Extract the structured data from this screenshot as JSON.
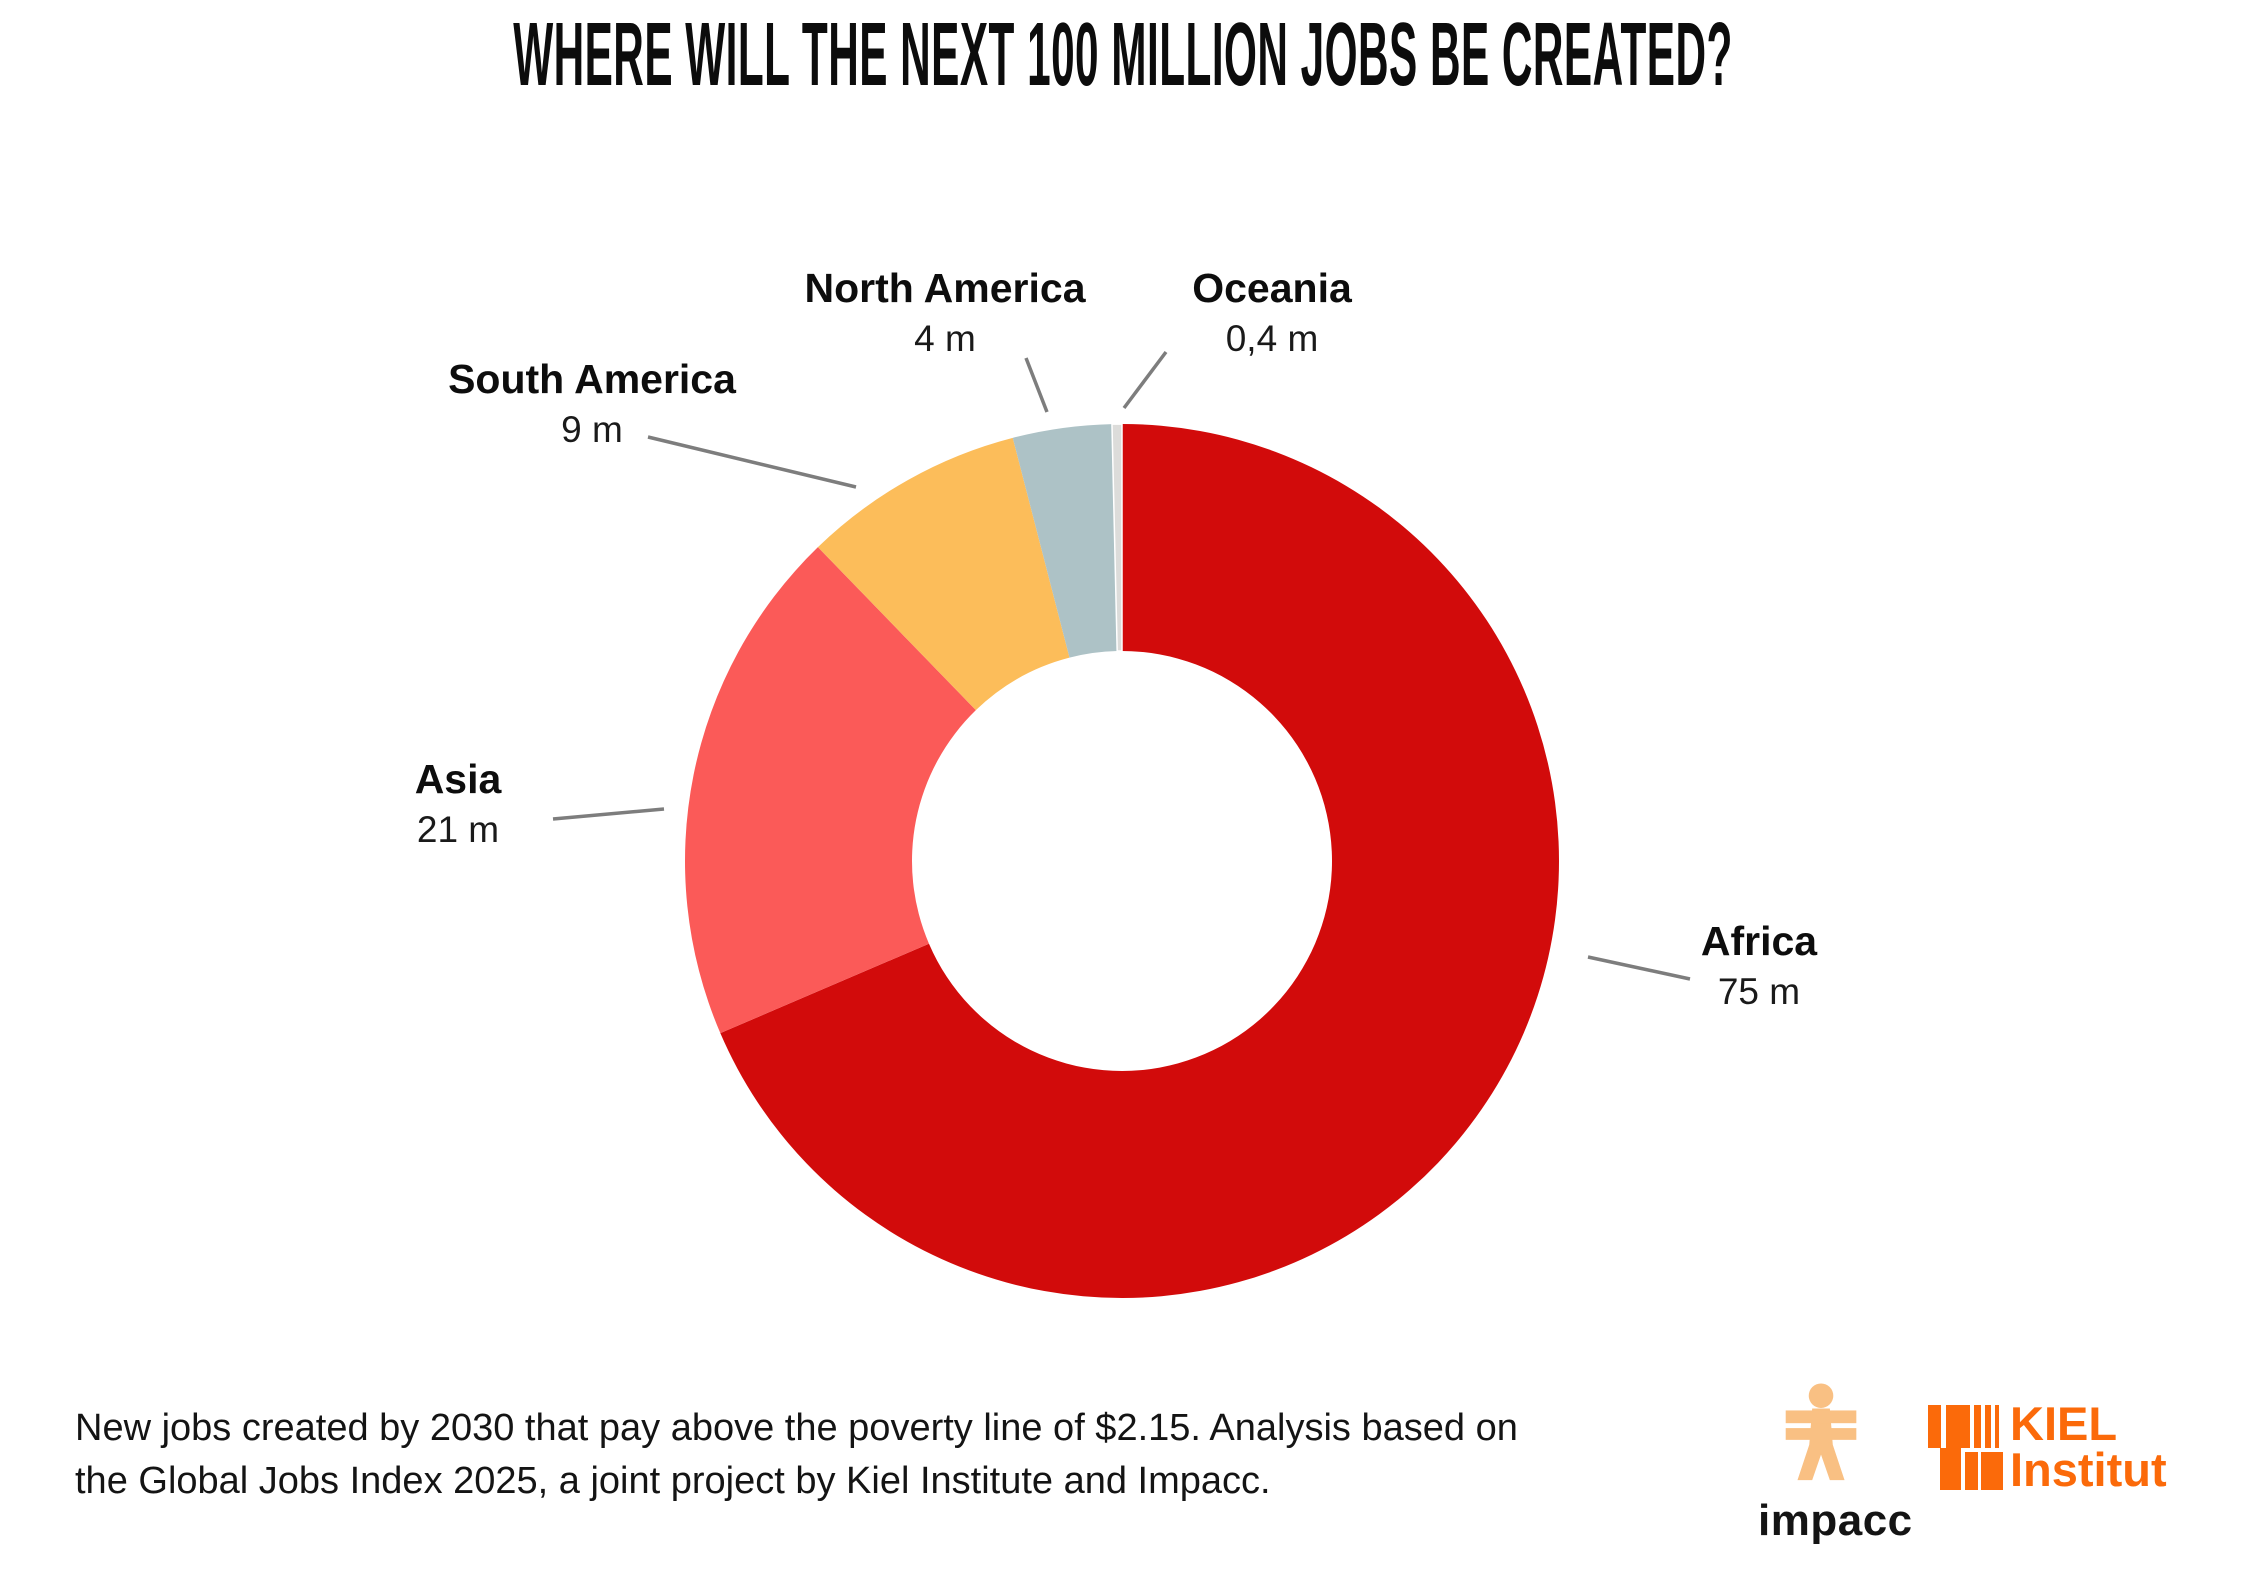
{
  "title": "WHERE WILL THE NEXT 100 MILLION JOBS BE CREATED?",
  "chart_data": {
    "type": "pie",
    "subtype": "donut",
    "title": "Where will the next 100 million jobs be created?",
    "unit": "million new jobs by 2030",
    "start_angle_deg": 0,
    "direction": "clockwise",
    "legend_position": "outside-labels-with-leader-lines",
    "segments": [
      {
        "label": "Africa",
        "value": 75,
        "value_display": "75 m",
        "color": "#d20b0b"
      },
      {
        "label": "Asia",
        "value": 21,
        "value_display": "21 m",
        "color": "#fb5a58"
      },
      {
        "label": "South America",
        "value": 9,
        "value_display": "9 m",
        "color": "#fcbd5a"
      },
      {
        "label": "North America",
        "value": 4,
        "value_display": "4 m",
        "color": "#adc2c6"
      },
      {
        "label": "Oceania",
        "value": 0.4,
        "value_display": "0,4 m",
        "color": "#dcdcda"
      }
    ]
  },
  "footer": {
    "line1": "New jobs created by 2030 that pay above the poverty line of $2.15. Analysis based on",
    "line2": "the Global Jobs Index 2025, a joint project by Kiel Institute and Impacc."
  },
  "logos": {
    "impacc": {
      "wordmark": "impacc",
      "figure_color": "#f9c083",
      "text_color": "#141414"
    },
    "kiel": {
      "line1": "KIEL",
      "line2": "Institut",
      "color": "#fb6a0a"
    }
  }
}
